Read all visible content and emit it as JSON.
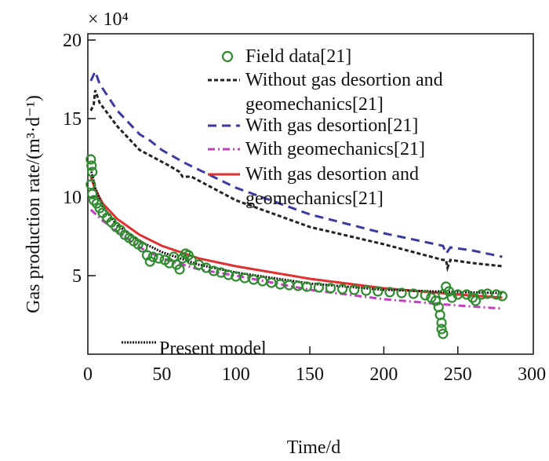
{
  "chart_data": {
    "type": "line",
    "xlabel": "Time/d",
    "ylabel": "Gas production rate/(m³·d⁻¹)",
    "y_multiplier": "× 10⁴",
    "xlim": [
      0,
      301
    ],
    "ylim": [
      0,
      20.4
    ],
    "xticks": [
      "0",
      "50",
      "100",
      "150",
      "200",
      "250",
      "300"
    ],
    "yticks": [
      "5",
      "10",
      "15",
      "20"
    ],
    "grid": false,
    "legend_position": "top-right",
    "series": [
      {
        "name": "Without gas desortion and geomechanics[21]",
        "color": "#222222",
        "style": "dashed",
        "x": [
          2,
          4,
          5,
          8,
          20,
          35,
          45,
          55,
          62,
          64,
          70,
          100,
          150,
          200,
          240,
          242,
          243,
          245,
          260,
          280
        ],
        "y": [
          15.5,
          15.9,
          16.8,
          16.0,
          14.5,
          13.0,
          12.5,
          12.0,
          11.6,
          11.3,
          11.3,
          9.8,
          8.1,
          7.0,
          6.0,
          6.0,
          5.5,
          6.0,
          5.8,
          5.6
        ]
      },
      {
        "name": "With gas desortion[21]",
        "color": "#3a3aa0",
        "style": "long-dashed",
        "x": [
          2,
          5,
          8,
          20,
          35,
          42,
          50,
          65,
          100,
          150,
          200,
          240,
          242,
          245,
          260,
          280
        ],
        "y": [
          17.4,
          18.0,
          17.2,
          15.5,
          14.0,
          13.6,
          13.0,
          12.2,
          10.6,
          8.9,
          7.7,
          6.9,
          6.4,
          6.8,
          6.6,
          6.2
        ]
      },
      {
        "name": "With geomechanics[21]",
        "color": "#c040c0",
        "style": "dash-dot",
        "x": [
          2,
          10,
          20,
          35,
          50,
          75,
          100,
          150,
          200,
          250,
          280
        ],
        "y": [
          9.2,
          8.5,
          7.8,
          6.8,
          6.1,
          5.4,
          5.0,
          4.1,
          3.5,
          3.1,
          2.9
        ]
      },
      {
        "name": "With gas desortion and geomechanics[21]",
        "color": "#e03030",
        "style": "solid",
        "x": [
          2,
          5,
          10,
          20,
          35,
          50,
          75,
          100,
          150,
          200,
          250,
          280
        ],
        "y": [
          11.3,
          10.5,
          9.6,
          8.6,
          7.6,
          6.9,
          6.1,
          5.6,
          4.8,
          4.2,
          3.8,
          3.6
        ]
      },
      {
        "name": "Present model",
        "color": "#111111",
        "style": "dotted",
        "x": [
          2,
          5,
          10,
          20,
          35,
          50,
          75,
          100,
          150,
          200,
          250,
          280
        ],
        "y": [
          11.8,
          10.6,
          9.4,
          8.2,
          7.2,
          6.5,
          5.7,
          5.2,
          4.5,
          4.1,
          3.95,
          3.9
        ]
      }
    ],
    "field_data": {
      "name": "Field data[21]",
      "color": "#2e8b2e",
      "points": [
        [
          2,
          12.4
        ],
        [
          2.5,
          12.0
        ],
        [
          3,
          11.6
        ],
        [
          2,
          10.8
        ],
        [
          3,
          10.2
        ],
        [
          4,
          9.8
        ],
        [
          6,
          9.6
        ],
        [
          8,
          9.3
        ],
        [
          10,
          9.0
        ],
        [
          13,
          8.7
        ],
        [
          16,
          8.4
        ],
        [
          19,
          8.1
        ],
        [
          22,
          7.9
        ],
        [
          25,
          7.6
        ],
        [
          28,
          7.4
        ],
        [
          31,
          7.2
        ],
        [
          34,
          7.0
        ],
        [
          37,
          6.8
        ],
        [
          40,
          6.3
        ],
        [
          42,
          5.9
        ],
        [
          44,
          6.2
        ],
        [
          48,
          6.1
        ],
        [
          52,
          6.0
        ],
        [
          55,
          5.8
        ],
        [
          58,
          6.2
        ],
        [
          60,
          5.7
        ],
        [
          62,
          5.4
        ],
        [
          64,
          6.1
        ],
        [
          66,
          6.4
        ],
        [
          68,
          6.3
        ],
        [
          70,
          6.0
        ],
        [
          75,
          5.7
        ],
        [
          80,
          5.5
        ],
        [
          85,
          5.3
        ],
        [
          90,
          5.2
        ],
        [
          95,
          5.05
        ],
        [
          100,
          4.95
        ],
        [
          106,
          4.85
        ],
        [
          112,
          4.75
        ],
        [
          118,
          4.65
        ],
        [
          124,
          4.55
        ],
        [
          130,
          4.45
        ],
        [
          136,
          4.4
        ],
        [
          142,
          4.35
        ],
        [
          148,
          4.3
        ],
        [
          156,
          4.25
        ],
        [
          164,
          4.2
        ],
        [
          172,
          4.15
        ],
        [
          180,
          4.1
        ],
        [
          188,
          4.05
        ],
        [
          196,
          4.0
        ],
        [
          204,
          3.95
        ],
        [
          212,
          3.9
        ],
        [
          220,
          3.85
        ],
        [
          228,
          3.75
        ],
        [
          232,
          3.6
        ],
        [
          235,
          3.4
        ],
        [
          237,
          3.0
        ],
        [
          238,
          2.5
        ],
        [
          239,
          2.0
        ],
        [
          239,
          1.6
        ],
        [
          240,
          1.3
        ],
        [
          240,
          3.8
        ],
        [
          242,
          4.3
        ],
        [
          244,
          4.0
        ],
        [
          246,
          3.6
        ],
        [
          250,
          3.8
        ],
        [
          256,
          3.8
        ],
        [
          260,
          3.6
        ],
        [
          262,
          3.4
        ],
        [
          266,
          3.8
        ],
        [
          270,
          3.85
        ],
        [
          276,
          3.8
        ],
        [
          280,
          3.7
        ]
      ]
    }
  }
}
